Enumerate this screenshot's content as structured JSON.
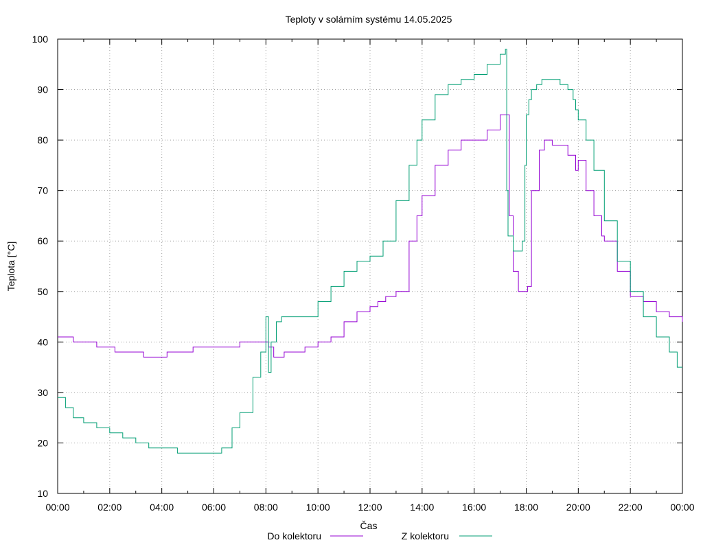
{
  "chart_data": {
    "type": "line",
    "title": "Teploty v solárním systému 14.05.2025",
    "xlabel": "Čas",
    "ylabel": "Teplota [°C]",
    "xlim": [
      0,
      24
    ],
    "ylim": [
      10,
      100
    ],
    "grid": true,
    "legend_position": "bottom-center",
    "x_ticks": [
      {
        "value": 0,
        "label": "00:00"
      },
      {
        "value": 2,
        "label": "02:00"
      },
      {
        "value": 4,
        "label": "04:00"
      },
      {
        "value": 6,
        "label": "06:00"
      },
      {
        "value": 8,
        "label": "08:00"
      },
      {
        "value": 10,
        "label": "10:00"
      },
      {
        "value": 12,
        "label": "12:00"
      },
      {
        "value": 14,
        "label": "14:00"
      },
      {
        "value": 16,
        "label": "16:00"
      },
      {
        "value": 18,
        "label": "18:00"
      },
      {
        "value": 20,
        "label": "20:00"
      },
      {
        "value": 22,
        "label": "22:00"
      },
      {
        "value": 24,
        "label": "00:00"
      }
    ],
    "y_ticks": [
      {
        "value": 10,
        "label": "10"
      },
      {
        "value": 20,
        "label": "20"
      },
      {
        "value": 30,
        "label": "30"
      },
      {
        "value": 40,
        "label": "40"
      },
      {
        "value": 50,
        "label": "50"
      },
      {
        "value": 60,
        "label": "60"
      },
      {
        "value": 70,
        "label": "70"
      },
      {
        "value": 80,
        "label": "80"
      },
      {
        "value": 90,
        "label": "90"
      },
      {
        "value": 100,
        "label": "100"
      }
    ],
    "series": [
      {
        "name": "Do kolektoru",
        "color": "#9400d3",
        "x": [
          0,
          0.5,
          0.6,
          1.5,
          2.2,
          3.1,
          3.3,
          4.0,
          4.2,
          5.2,
          6.0,
          7.0,
          7.4,
          8.0,
          8.1,
          8.3,
          8.7,
          9.5,
          10.0,
          10.5,
          11.0,
          11.5,
          12.0,
          12.3,
          12.6,
          12.8,
          13.0,
          13.5,
          13.8,
          14.0,
          14.5,
          15.0,
          15.5,
          16.0,
          16.5,
          17.0,
          17.2,
          17.35,
          17.5,
          17.7,
          17.9,
          18.05,
          18.2,
          18.5,
          18.7,
          19.0,
          19.3,
          19.6,
          19.9,
          20.0,
          20.3,
          20.6,
          20.9,
          21.0,
          21.5,
          22.0,
          22.5,
          23.0,
          23.5,
          24.0
        ],
        "y": [
          41,
          41,
          40,
          39,
          38,
          38,
          37,
          37,
          38,
          39,
          39,
          40,
          40,
          40,
          39,
          37,
          38,
          39,
          40,
          41,
          44,
          46,
          47,
          48,
          49,
          49,
          50,
          60,
          65,
          69,
          75,
          78,
          80,
          80,
          82,
          85,
          85,
          65,
          54,
          50,
          50,
          51,
          70,
          78,
          80,
          79,
          79,
          77,
          74,
          76,
          70,
          65,
          61,
          60,
          54,
          49,
          48,
          46,
          45,
          44
        ]
      },
      {
        "name": "Z kolektoru",
        "color": "#009e73",
        "x": [
          0,
          0.3,
          0.6,
          1.0,
          1.5,
          2.0,
          2.5,
          3.0,
          3.5,
          4.0,
          4.6,
          5.5,
          6.0,
          6.3,
          6.7,
          7.0,
          7.5,
          7.8,
          8.0,
          8.1,
          8.2,
          8.4,
          8.6,
          9.0,
          9.5,
          10.0,
          10.5,
          11.0,
          11.5,
          12.0,
          12.5,
          13.0,
          13.5,
          13.8,
          14.0,
          14.5,
          15.0,
          15.5,
          16.0,
          16.5,
          17.0,
          17.2,
          17.25,
          17.3,
          17.5,
          17.7,
          17.85,
          17.95,
          18.0,
          18.1,
          18.2,
          18.4,
          18.6,
          19.0,
          19.3,
          19.6,
          19.8,
          19.9,
          20.0,
          20.3,
          20.6,
          21.0,
          21.5,
          22.0,
          22.5,
          23.0,
          23.5,
          23.8,
          24.0
        ],
        "y": [
          29,
          27,
          25,
          24,
          23,
          22,
          21,
          20,
          19,
          19,
          18,
          18,
          18,
          19,
          23,
          26,
          33,
          38,
          45,
          34,
          40,
          44,
          45,
          45,
          45,
          48,
          51,
          54,
          56,
          57,
          60,
          68,
          75,
          80,
          84,
          89,
          91,
          92,
          93,
          95,
          97,
          98,
          70,
          61,
          58,
          58,
          60,
          75,
          85,
          88,
          90,
          91,
          92,
          92,
          91,
          90,
          88,
          86,
          84,
          80,
          74,
          64,
          56,
          50,
          45,
          41,
          38,
          35,
          35
        ]
      }
    ]
  }
}
